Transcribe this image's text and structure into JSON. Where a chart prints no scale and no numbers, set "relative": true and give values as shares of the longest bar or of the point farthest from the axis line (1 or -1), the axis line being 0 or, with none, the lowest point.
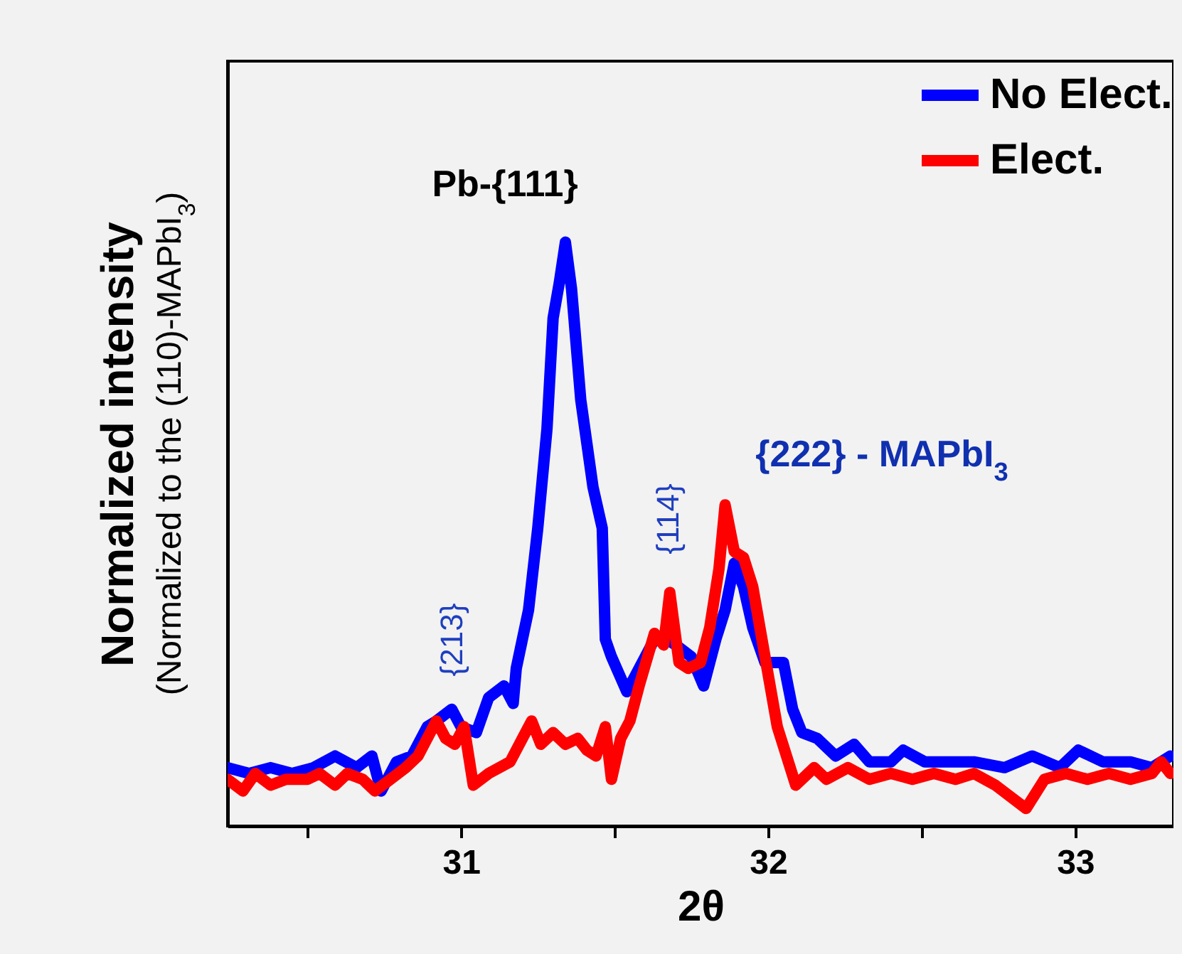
{
  "chart_data": {
    "type": "line",
    "relative": true,
    "xlabel": "2θ",
    "ylabel": "Normalized intensity",
    "xlim": [
      30.24,
      33.32
    ],
    "xticks": [
      {
        "value": 30.5,
        "label": null
      },
      31,
      {
        "value": 31.5,
        "label": null
      },
      32,
      {
        "value": 32.5,
        "label": null
      },
      33
    ],
    "grid": false,
    "legend": "top right",
    "line_style": "solid",
    "annotations": [
      "Pb-{111}",
      "{213}",
      "{114}",
      "{222} - MAPbI$_{3}$",
      "(Normalized to the (110)-MAPbI$_{3}$)"
    ],
    "series": [
      {
        "name": "No Elect.",
        "color": "#0000ff",
        "x": [
          30.24,
          30.31,
          30.38,
          30.45,
          30.52,
          30.59,
          30.66,
          30.71,
          30.74,
          30.79,
          30.84,
          30.89,
          30.92,
          30.97,
          31.0,
          31.05,
          31.09,
          31.14,
          31.17,
          31.18,
          31.22,
          31.25,
          31.28,
          31.3,
          31.32,
          31.34,
          31.36,
          31.39,
          31.43,
          31.46,
          31.47,
          31.49,
          31.54,
          31.58,
          31.63,
          31.67,
          31.7,
          31.75,
          31.79,
          31.83,
          31.86,
          31.89,
          31.92,
          31.95,
          31.99,
          32.05,
          32.08,
          32.11,
          32.16,
          32.22,
          32.28,
          32.33,
          32.4,
          32.44,
          32.51,
          32.58,
          32.67,
          32.77,
          32.86,
          32.95,
          33.01,
          33.09,
          33.18,
          33.25,
          33.31
        ],
        "values": [
          0.1,
          0.09,
          0.1,
          0.09,
          0.1,
          0.12,
          0.1,
          0.12,
          0.06,
          0.11,
          0.12,
          0.17,
          0.18,
          0.2,
          0.17,
          0.16,
          0.22,
          0.24,
          0.21,
          0.27,
          0.37,
          0.51,
          0.68,
          0.87,
          0.93,
          1.0,
          0.92,
          0.73,
          0.58,
          0.51,
          0.32,
          0.29,
          0.23,
          0.27,
          0.32,
          0.32,
          0.31,
          0.29,
          0.24,
          0.32,
          0.37,
          0.45,
          0.41,
          0.34,
          0.28,
          0.28,
          0.2,
          0.16,
          0.15,
          0.12,
          0.14,
          0.11,
          0.11,
          0.13,
          0.11,
          0.11,
          0.11,
          0.1,
          0.12,
          0.1,
          0.13,
          0.11,
          0.11,
          0.1,
          0.12
        ]
      },
      {
        "name": "Elect.",
        "color": "#ff0000",
        "x": [
          30.24,
          30.29,
          30.33,
          30.38,
          30.43,
          30.5,
          30.54,
          30.59,
          30.63,
          30.68,
          30.72,
          30.77,
          30.82,
          30.86,
          30.92,
          30.95,
          30.98,
          31.01,
          31.04,
          31.09,
          31.16,
          31.2,
          31.23,
          31.26,
          31.3,
          31.34,
          31.38,
          31.41,
          31.44,
          31.47,
          31.49,
          31.52,
          31.55,
          31.58,
          31.63,
          31.66,
          31.68,
          31.71,
          31.74,
          31.78,
          31.81,
          31.84,
          31.86,
          31.89,
          31.92,
          31.95,
          31.99,
          32.03,
          32.09,
          32.15,
          32.19,
          32.26,
          32.33,
          32.4,
          32.47,
          32.54,
          32.61,
          32.67,
          32.74,
          32.84,
          32.9,
          32.97,
          33.04,
          33.11,
          33.18,
          33.25,
          33.28,
          33.31
        ],
        "values": [
          0.08,
          0.06,
          0.09,
          0.07,
          0.08,
          0.08,
          0.09,
          0.07,
          0.09,
          0.08,
          0.06,
          0.08,
          0.1,
          0.12,
          0.18,
          0.15,
          0.14,
          0.17,
          0.07,
          0.09,
          0.11,
          0.15,
          0.18,
          0.14,
          0.16,
          0.14,
          0.15,
          0.13,
          0.12,
          0.17,
          0.08,
          0.15,
          0.18,
          0.24,
          0.33,
          0.31,
          0.4,
          0.28,
          0.27,
          0.28,
          0.34,
          0.44,
          0.55,
          0.47,
          0.46,
          0.41,
          0.29,
          0.17,
          0.07,
          0.1,
          0.08,
          0.1,
          0.08,
          0.09,
          0.08,
          0.09,
          0.08,
          0.09,
          0.07,
          0.03,
          0.08,
          0.09,
          0.08,
          0.09,
          0.08,
          0.09,
          0.11,
          0.09
        ]
      }
    ]
  }
}
